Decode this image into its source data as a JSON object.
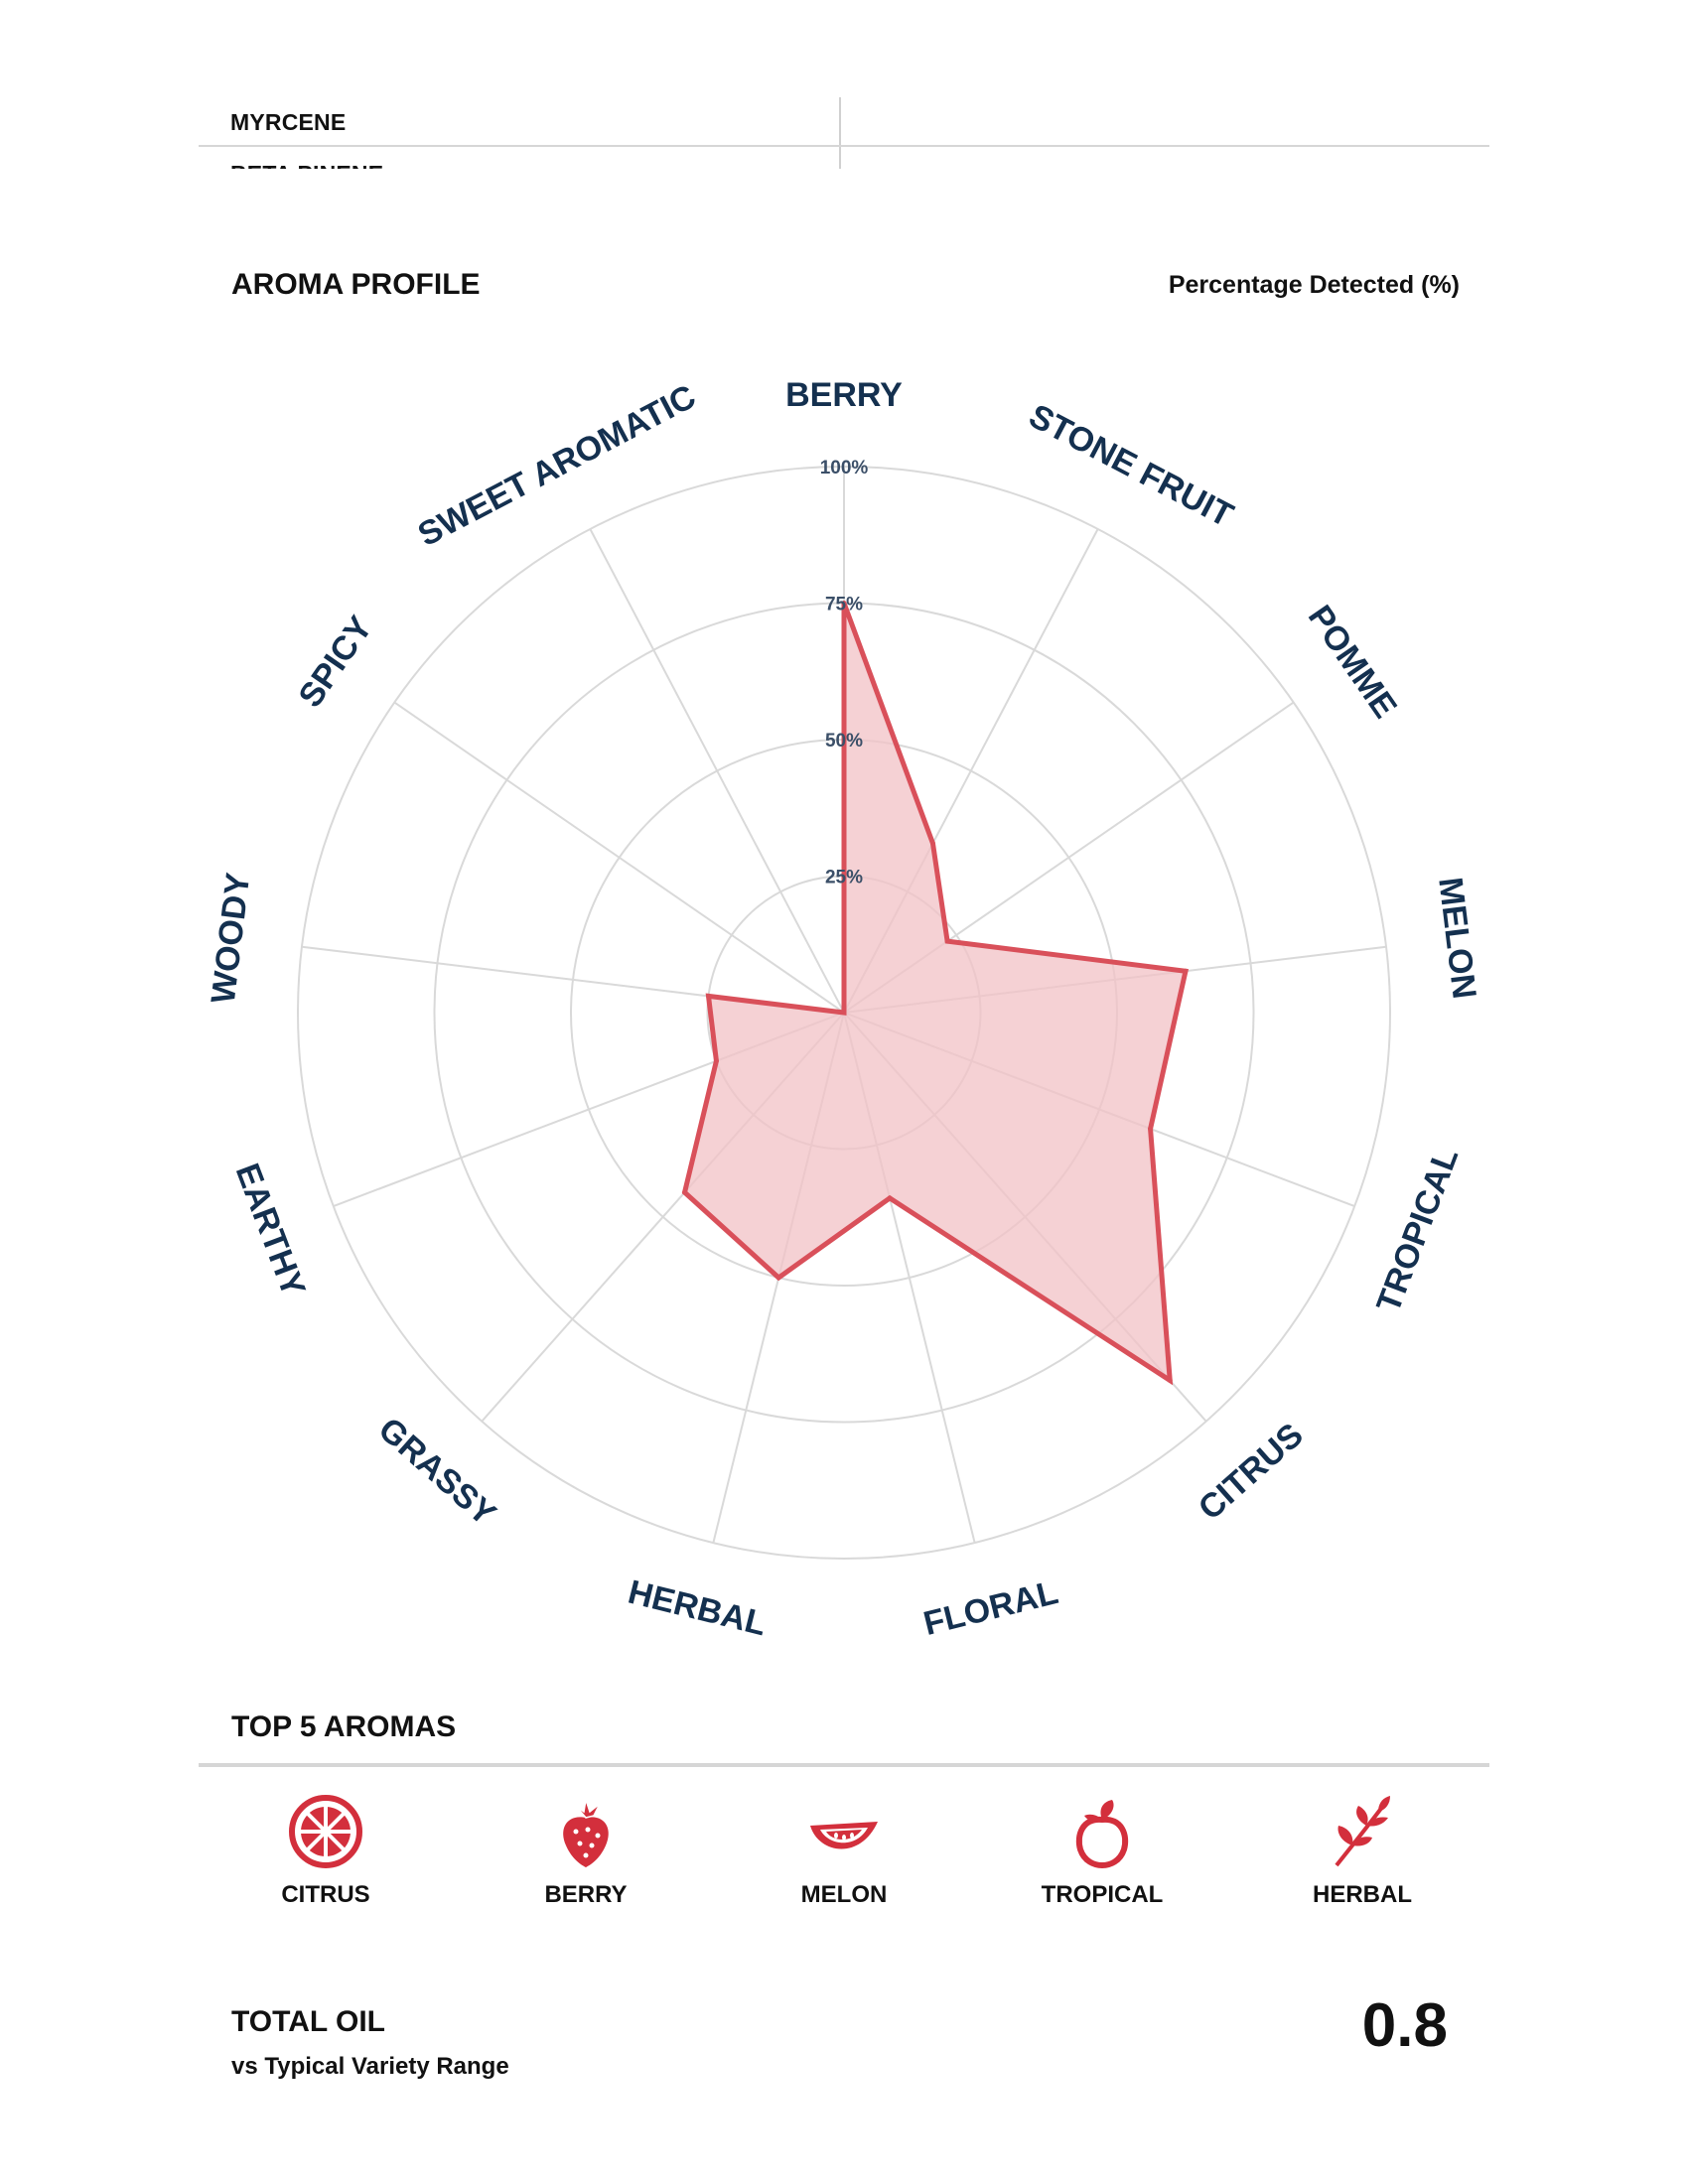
{
  "terpene_table": {
    "rows": [
      "MYRCENE",
      "BETA PINENE"
    ]
  },
  "aroma_profile": {
    "title": "AROMA PROFILE",
    "unit_label": "Percentage Detected (%)"
  },
  "chart_data": {
    "type": "radar",
    "title": "",
    "axes": [
      "BERRY",
      "STONE FRUIT",
      "POMME",
      "MELON",
      "TROPICAL",
      "CITRUS",
      "FLORAL",
      "HERBAL",
      "GRASSY",
      "EARTHY",
      "WOODY",
      "SPICY",
      "SWEET AROMATIC"
    ],
    "values": [
      75,
      35,
      23,
      63,
      60,
      90,
      35,
      50,
      44,
      25,
      25,
      0,
      0
    ],
    "rlim": [
      0,
      100
    ],
    "ticks": [
      25,
      50,
      75,
      100
    ],
    "tick_labels": [
      "25%",
      "50%",
      "75%",
      "100%"
    ],
    "grid": true,
    "series_color": "#d9505a",
    "fill_color": "#f1c2c5"
  },
  "top5": {
    "title": "TOP 5 AROMAS",
    "items": [
      {
        "label": "CITRUS",
        "icon": "citrus-slice-icon"
      },
      {
        "label": "BERRY",
        "icon": "strawberry-icon"
      },
      {
        "label": "MELON",
        "icon": "melon-slice-icon"
      },
      {
        "label": "TROPICAL",
        "icon": "tropical-fruit-icon"
      },
      {
        "label": "HERBAL",
        "icon": "herb-leaves-icon"
      }
    ],
    "icon_color": "#d32f3c"
  },
  "total_oil": {
    "title": "TOTAL OIL",
    "subtitle": "vs Typical Variety Range",
    "value": "0.8"
  }
}
